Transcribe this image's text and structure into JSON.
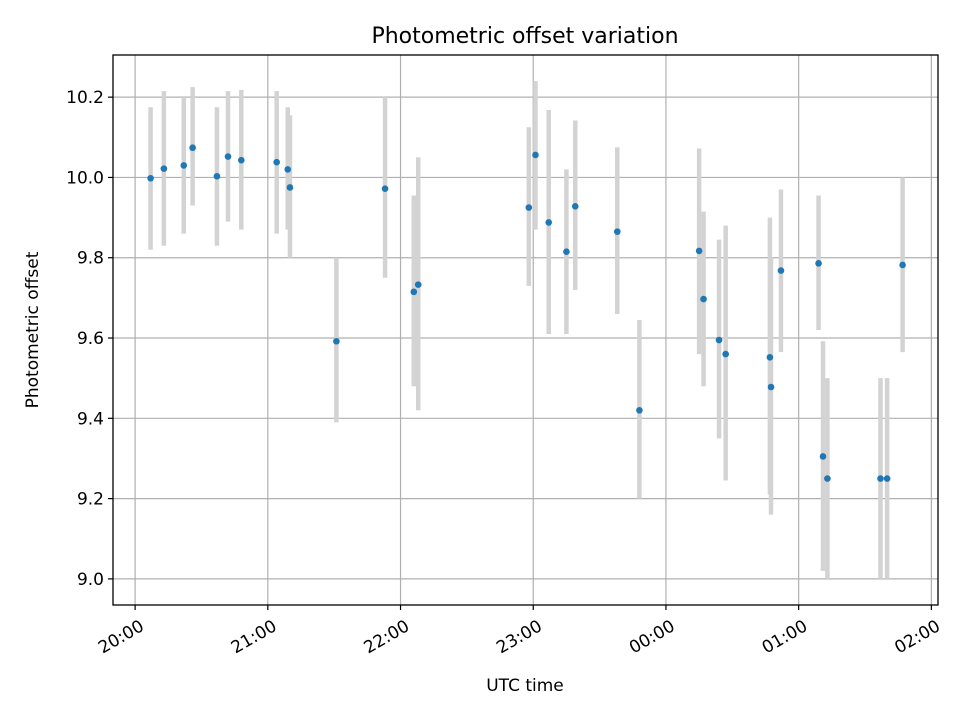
{
  "chart_data": {
    "type": "scatter",
    "title": "Photometric offset variation",
    "xlabel": "UTC time",
    "ylabel": "Photometric offset",
    "xlim": [
      "19:50",
      "02:03"
    ],
    "ylim": [
      8.935,
      10.305
    ],
    "grid": true,
    "x_ticks": [
      "20:00",
      "21:00",
      "22:00",
      "23:00",
      "00:00",
      "01:00",
      "02:00"
    ],
    "y_ticks": [
      9.0,
      9.2,
      9.4,
      9.6,
      9.8,
      10.0,
      10.2
    ],
    "y_tick_labels": [
      "9.0",
      "9.2",
      "9.4",
      "9.6",
      "9.8",
      "10.0",
      "10.2"
    ],
    "colors": {
      "point": "#1f77b4",
      "errorbar": "#d3d3d3",
      "grid": "#b0b0b0"
    },
    "series": [
      {
        "points": [
          {
            "x": "20:07",
            "y": 9.998,
            "yerr_low": 9.82,
            "yerr_high": 10.175
          },
          {
            "x": "20:13",
            "y": 10.022,
            "yerr_low": 9.83,
            "yerr_high": 10.215
          },
          {
            "x": "20:22",
            "y": 10.03,
            "yerr_low": 9.86,
            "yerr_high": 10.2
          },
          {
            "x": "20:26",
            "y": 10.074,
            "yerr_low": 9.93,
            "yerr_high": 10.225
          },
          {
            "x": "20:37",
            "y": 10.003,
            "yerr_low": 9.83,
            "yerr_high": 10.175
          },
          {
            "x": "20:42",
            "y": 10.052,
            "yerr_low": 9.89,
            "yerr_high": 10.215
          },
          {
            "x": "20:48",
            "y": 10.043,
            "yerr_low": 9.87,
            "yerr_high": 10.218
          },
          {
            "x": "21:04",
            "y": 10.038,
            "yerr_low": 9.86,
            "yerr_high": 10.215
          },
          {
            "x": "21:09",
            "y": 10.02,
            "yerr_low": 9.87,
            "yerr_high": 10.175
          },
          {
            "x": "21:10",
            "y": 9.975,
            "yerr_low": 9.8,
            "yerr_high": 10.155
          },
          {
            "x": "21:31",
            "y": 9.592,
            "yerr_low": 9.39,
            "yerr_high": 9.8
          },
          {
            "x": "21:53",
            "y": 9.972,
            "yerr_low": 9.75,
            "yerr_high": 10.2
          },
          {
            "x": "22:06",
            "y": 9.715,
            "yerr_low": 9.48,
            "yerr_high": 9.955
          },
          {
            "x": "22:08",
            "y": 9.733,
            "yerr_low": 9.42,
            "yerr_high": 10.05
          },
          {
            "x": "22:58",
            "y": 9.925,
            "yerr_low": 9.73,
            "yerr_high": 10.125
          },
          {
            "x": "23:01",
            "y": 10.056,
            "yerr_low": 9.87,
            "yerr_high": 10.24
          },
          {
            "x": "23:07",
            "y": 9.888,
            "yerr_low": 9.61,
            "yerr_high": 10.168
          },
          {
            "x": "23:15",
            "y": 9.815,
            "yerr_low": 9.61,
            "yerr_high": 10.02
          },
          {
            "x": "23:19",
            "y": 9.928,
            "yerr_low": 9.72,
            "yerr_high": 10.142
          },
          {
            "x": "23:38",
            "y": 9.865,
            "yerr_low": 9.66,
            "yerr_high": 10.075
          },
          {
            "x": "23:48",
            "y": 9.42,
            "yerr_low": 9.2,
            "yerr_high": 9.645
          },
          {
            "x": "00:15",
            "y": 9.817,
            "yerr_low": 9.56,
            "yerr_high": 10.072
          },
          {
            "x": "00:17",
            "y": 9.697,
            "yerr_low": 9.48,
            "yerr_high": 9.915
          },
          {
            "x": "00:24",
            "y": 9.595,
            "yerr_low": 9.35,
            "yerr_high": 9.845
          },
          {
            "x": "00:27",
            "y": 9.56,
            "yerr_low": 9.245,
            "yerr_high": 9.88
          },
          {
            "x": "00:47",
            "y": 9.552,
            "yerr_low": 9.21,
            "yerr_high": 9.9
          },
          {
            "x": "00:47:30",
            "y": 9.478,
            "yerr_low": 9.16,
            "yerr_high": 9.8
          },
          {
            "x": "00:52",
            "y": 9.768,
            "yerr_low": 9.565,
            "yerr_high": 9.97
          },
          {
            "x": "01:09",
            "y": 9.786,
            "yerr_low": 9.62,
            "yerr_high": 9.955
          },
          {
            "x": "01:11",
            "y": 9.305,
            "yerr_low": 9.02,
            "yerr_high": 9.592
          },
          {
            "x": "01:13",
            "y": 9.25,
            "yerr_low": 9.0,
            "yerr_high": 9.5
          },
          {
            "x": "01:37",
            "y": 9.25,
            "yerr_low": 9.0,
            "yerr_high": 9.5
          },
          {
            "x": "01:40",
            "y": 9.25,
            "yerr_low": 9.0,
            "yerr_high": 9.5
          },
          {
            "x": "01:47",
            "y": 9.782,
            "yerr_low": 9.565,
            "yerr_high": 10.0
          }
        ]
      }
    ]
  }
}
